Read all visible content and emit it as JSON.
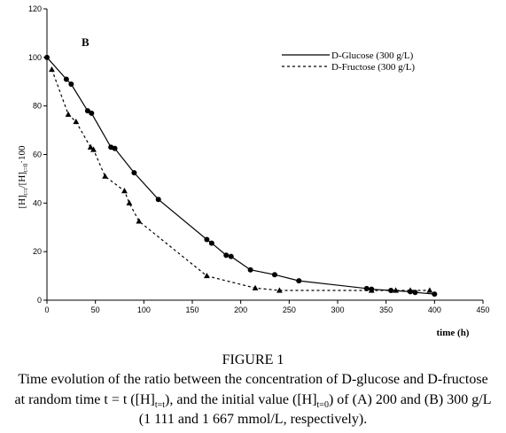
{
  "chart_data": {
    "type": "line",
    "panel_label": "B",
    "ylabel_parts": {
      "a": "[H]",
      "sub1": "t=t",
      "b": "/[H]",
      "sub2": "t=0",
      "c": "·100"
    },
    "xlabel": "time (h)",
    "xlim": [
      0,
      450
    ],
    "ylim": [
      0,
      120
    ],
    "x_ticks": [
      0,
      50,
      100,
      150,
      200,
      250,
      300,
      350,
      400,
      450
    ],
    "y_ticks": [
      0,
      20,
      40,
      60,
      80,
      100,
      120
    ],
    "grid": false,
    "legend_position": "top-right",
    "series": [
      {
        "name": "D-Glucose (300 g/L)",
        "style": "solid",
        "marker": "circle",
        "x": [
          0,
          20,
          25,
          42,
          46,
          66,
          70,
          90,
          115,
          165,
          170,
          185,
          190,
          210,
          235,
          260,
          330,
          335,
          355,
          375,
          380,
          400
        ],
        "y": [
          100,
          91,
          89,
          78,
          77,
          63,
          62.5,
          52.5,
          41.5,
          25,
          23.5,
          18.5,
          18,
          12.5,
          10.5,
          8,
          4.8,
          4.5,
          4,
          3.5,
          3.2,
          2.5
        ]
      },
      {
        "name": "D-Fructose (300 g/L)",
        "style": "dashed",
        "marker": "triangle",
        "x": [
          5,
          22,
          30,
          45,
          48,
          60,
          80,
          85,
          95,
          165,
          215,
          240,
          335,
          360,
          375,
          395
        ],
        "y": [
          95,
          76.5,
          73.5,
          63,
          62,
          51,
          45,
          40,
          32.5,
          10,
          5,
          4,
          4,
          4,
          4,
          4
        ]
      }
    ]
  },
  "caption": {
    "title": "FIGURE 1",
    "line1": "Time evolution of the ratio between the concentration of D-glucose and D-fructose",
    "line2_a": "at random time t = t ([H]",
    "line2_sub1": "t=t",
    "line2_b": "), and the initial value ([H]",
    "line2_sub2": "t=0",
    "line2_c": ") of (A) 200 and (B) 300 g/L",
    "line3": "(1 111 and 1 667 mmol/L, respectively)."
  }
}
